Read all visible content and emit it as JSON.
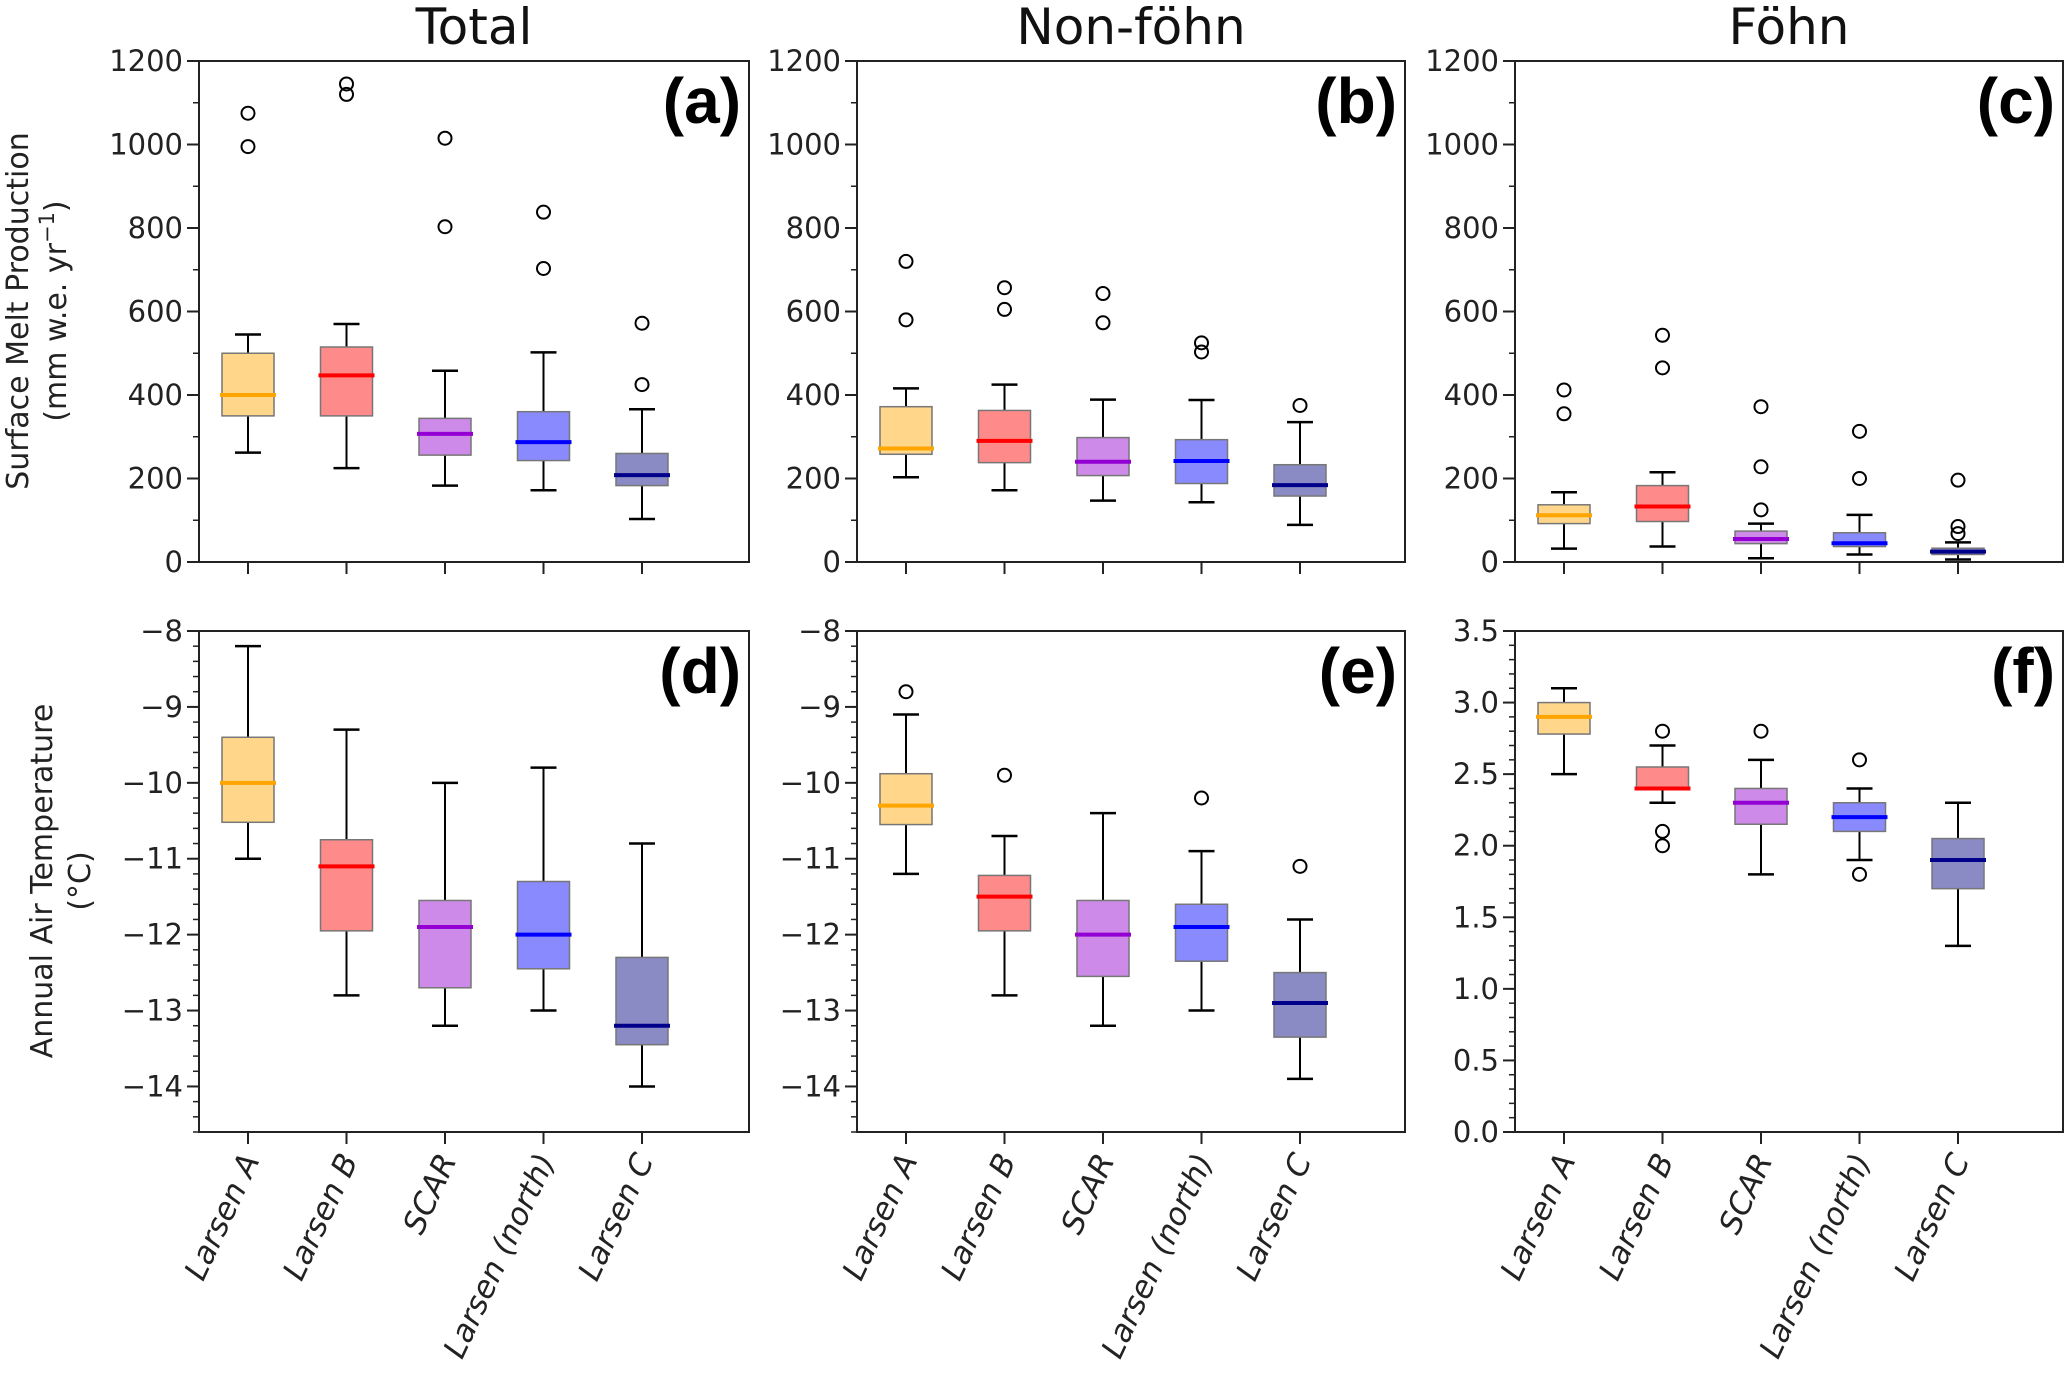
{
  "figure": {
    "column_titles": [
      "Total",
      "Non-föhn",
      "Föhn"
    ],
    "row_ylabels": [
      {
        "line1": "Surface Melt Production",
        "line2": "(mm w.e. yr",
        "line2_sup": "−1",
        "line2_end": ")"
      },
      {
        "line1": "Annual Air Temperature",
        "line2": "(°C)",
        "line2_sup": "",
        "line2_end": ""
      }
    ]
  },
  "chart_data": [
    {
      "type": "box",
      "panel": "(a)",
      "title": "Total",
      "ylabel": "Surface Melt Production (mm w.e. yr−1)",
      "ylim": [
        0,
        1200
      ],
      "yticks": [
        0,
        200,
        400,
        600,
        800,
        1000,
        1200
      ],
      "ytick_labels": [
        "0",
        "200",
        "400",
        "600",
        "800",
        "1000",
        "1200"
      ],
      "minor_step": 100,
      "categories": [
        "Larsen A",
        "Larsen B",
        "SCAR",
        "Larsen (north)",
        "Larsen C"
      ],
      "boxes": [
        {
          "whislo": 262,
          "q1": 350,
          "med": 400,
          "q3": 500,
          "whishi": 545,
          "fliers": [
            995,
            1075
          ]
        },
        {
          "whislo": 225,
          "q1": 350,
          "med": 447,
          "q3": 515,
          "whishi": 570,
          "fliers": [
            1120,
            1145
          ]
        },
        {
          "whislo": 183,
          "q1": 256,
          "med": 307,
          "q3": 344,
          "whishi": 458,
          "fliers": [
            803,
            1015
          ]
        },
        {
          "whislo": 172,
          "q1": 243,
          "med": 287,
          "q3": 360,
          "whishi": 502,
          "fliers": [
            703,
            838
          ]
        },
        {
          "whislo": 103,
          "q1": 183,
          "med": 208,
          "q3": 260,
          "whishi": 366,
          "fliers": [
            425,
            572
          ]
        }
      ]
    },
    {
      "type": "box",
      "panel": "(b)",
      "title": "Non-föhn",
      "ylim": [
        0,
        1200
      ],
      "yticks": [
        0,
        200,
        400,
        600,
        800,
        1000,
        1200
      ],
      "ytick_labels": [
        "0",
        "200",
        "400",
        "600",
        "800",
        "1000",
        "1200"
      ],
      "minor_step": 100,
      "categories": [
        "Larsen A",
        "Larsen B",
        "SCAR",
        "Larsen (north)",
        "Larsen C"
      ],
      "boxes": [
        {
          "whislo": 203,
          "q1": 258,
          "med": 272,
          "q3": 372,
          "whishi": 416,
          "fliers": [
            580,
            720
          ]
        },
        {
          "whislo": 172,
          "q1": 238,
          "med": 290,
          "q3": 363,
          "whishi": 425,
          "fliers": [
            605,
            657
          ]
        },
        {
          "whislo": 147,
          "q1": 207,
          "med": 240,
          "q3": 298,
          "whishi": 389,
          "fliers": [
            573,
            643
          ]
        },
        {
          "whislo": 143,
          "q1": 188,
          "med": 242,
          "q3": 293,
          "whishi": 388,
          "fliers": [
            503,
            525
          ]
        },
        {
          "whislo": 89,
          "q1": 158,
          "med": 184,
          "q3": 233,
          "whishi": 335,
          "fliers": [
            375
          ]
        }
      ]
    },
    {
      "type": "box",
      "panel": "(c)",
      "title": "Föhn",
      "ylim": [
        0,
        1200
      ],
      "yticks": [
        0,
        200,
        400,
        600,
        800,
        1000,
        1200
      ],
      "ytick_labels": [
        "0",
        "200",
        "400",
        "600",
        "800",
        "1000",
        "1200"
      ],
      "minor_step": 100,
      "categories": [
        "Larsen A",
        "Larsen B",
        "SCAR",
        "Larsen (north)",
        "Larsen C"
      ],
      "boxes": [
        {
          "whislo": 32,
          "q1": 92,
          "med": 112,
          "q3": 137,
          "whishi": 167,
          "fliers": [
            355,
            412
          ]
        },
        {
          "whislo": 37,
          "q1": 97,
          "med": 133,
          "q3": 183,
          "whishi": 215,
          "fliers": [
            465,
            543
          ]
        },
        {
          "whislo": 9,
          "q1": 44,
          "med": 55,
          "q3": 74,
          "whishi": 92,
          "fliers": [
            125,
            228,
            372
          ]
        },
        {
          "whislo": 18,
          "q1": 37,
          "med": 45,
          "q3": 70,
          "whishi": 113,
          "fliers": [
            200,
            313
          ]
        },
        {
          "whislo": 6,
          "q1": 18,
          "med": 25,
          "q3": 33,
          "whishi": 47,
          "fliers": [
            68,
            85,
            196
          ]
        }
      ]
    },
    {
      "type": "box",
      "panel": "(d)",
      "ylabel": "Annual Air Temperature (°C)",
      "ylim": [
        -14.6,
        -8
      ],
      "yticks": [
        -14,
        -13,
        -12,
        -11,
        -10,
        -9,
        -8
      ],
      "ytick_labels": [
        "−14",
        "−13",
        "−12",
        "−11",
        "−10",
        "−9",
        "−8"
      ],
      "minor_step": 0.2,
      "categories": [
        "Larsen A",
        "Larsen B",
        "SCAR",
        "Larsen (north)",
        "Larsen C"
      ],
      "boxes": [
        {
          "whislo": -11.0,
          "q1": -10.52,
          "med": -10.0,
          "q3": -9.4,
          "whishi": -8.2,
          "fliers": []
        },
        {
          "whislo": -12.8,
          "q1": -11.95,
          "med": -11.1,
          "q3": -10.75,
          "whishi": -9.3,
          "fliers": []
        },
        {
          "whislo": -13.2,
          "q1": -12.7,
          "med": -11.9,
          "q3": -11.55,
          "whishi": -10.0,
          "fliers": []
        },
        {
          "whislo": -13.0,
          "q1": -12.45,
          "med": -12.0,
          "q3": -11.3,
          "whishi": -9.8,
          "fliers": []
        },
        {
          "whislo": -14.0,
          "q1": -13.45,
          "med": -13.2,
          "q3": -12.3,
          "whishi": -10.8,
          "fliers": []
        }
      ]
    },
    {
      "type": "box",
      "panel": "(e)",
      "ylim": [
        -14.6,
        -8
      ],
      "yticks": [
        -14,
        -13,
        -12,
        -11,
        -10,
        -9,
        -8
      ],
      "ytick_labels": [
        "−14",
        "−13",
        "−12",
        "−11",
        "−10",
        "−9",
        "−8"
      ],
      "minor_step": 0.2,
      "categories": [
        "Larsen A",
        "Larsen B",
        "SCAR",
        "Larsen (north)",
        "Larsen C"
      ],
      "boxes": [
        {
          "whislo": -11.2,
          "q1": -10.55,
          "med": -10.3,
          "q3": -9.88,
          "whishi": -9.1,
          "fliers": [
            -8.8
          ]
        },
        {
          "whislo": -12.8,
          "q1": -11.95,
          "med": -11.5,
          "q3": -11.22,
          "whishi": -10.7,
          "fliers": [
            -9.9
          ]
        },
        {
          "whislo": -13.2,
          "q1": -12.55,
          "med": -12.0,
          "q3": -11.55,
          "whishi": -10.4,
          "fliers": []
        },
        {
          "whislo": -13.0,
          "q1": -12.35,
          "med": -11.9,
          "q3": -11.6,
          "whishi": -10.9,
          "fliers": [
            -10.2
          ]
        },
        {
          "whislo": -13.9,
          "q1": -13.35,
          "med": -12.9,
          "q3": -12.5,
          "whishi": -11.8,
          "fliers": [
            -11.1
          ]
        }
      ]
    },
    {
      "type": "box",
      "panel": "(f)",
      "ylim": [
        0,
        3.5
      ],
      "yticks": [
        0,
        0.5,
        1.0,
        1.5,
        2.0,
        2.5,
        3.0,
        3.5
      ],
      "ytick_labels": [
        "0.0",
        "0.5",
        "1.0",
        "1.5",
        "2.0",
        "2.5",
        "3.0",
        "3.5"
      ],
      "minor_step": 0.1,
      "categories": [
        "Larsen A",
        "Larsen B",
        "SCAR",
        "Larsen (north)",
        "Larsen C"
      ],
      "boxes": [
        {
          "whislo": 2.5,
          "q1": 2.78,
          "med": 2.9,
          "q3": 3.0,
          "whishi": 3.1,
          "fliers": []
        },
        {
          "whislo": 2.3,
          "q1": 2.4,
          "med": 2.4,
          "q3": 2.55,
          "whishi": 2.7,
          "fliers": [
            2.0,
            2.1,
            2.8
          ]
        },
        {
          "whislo": 1.8,
          "q1": 2.15,
          "med": 2.3,
          "q3": 2.4,
          "whishi": 2.6,
          "fliers": [
            2.8
          ]
        },
        {
          "whislo": 1.9,
          "q1": 2.1,
          "med": 2.2,
          "q3": 2.3,
          "whishi": 2.4,
          "fliers": [
            1.8,
            2.6
          ]
        },
        {
          "whislo": 1.3,
          "q1": 1.7,
          "med": 1.9,
          "q3": 2.05,
          "whishi": 2.3,
          "fliers": []
        }
      ]
    }
  ],
  "styles": {
    "category_colors": [
      {
        "median": "#FFA500",
        "fill": "#FFD68A"
      },
      {
        "median": "#FF0000",
        "fill": "#FF8A8A"
      },
      {
        "median": "#9400D3",
        "fill": "#CD8AE8"
      },
      {
        "median": "#0000FF",
        "fill": "#8A8AFF"
      },
      {
        "median": "#00008B",
        "fill": "#8A8AC5"
      }
    ],
    "box_edge": "#777777",
    "whisker": "#000000",
    "axis": "#222222"
  }
}
